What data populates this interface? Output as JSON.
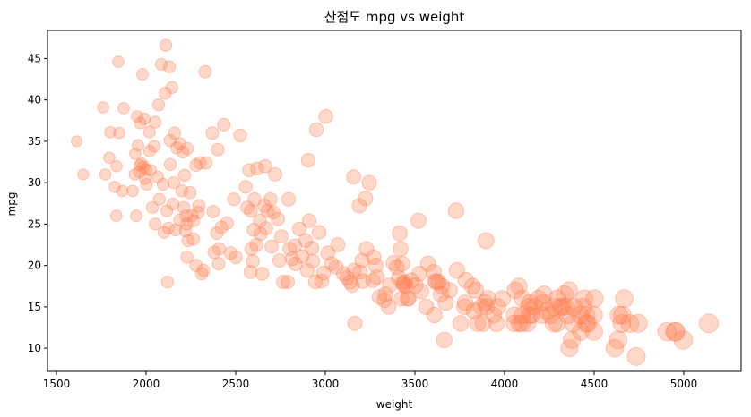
{
  "chart_data": {
    "type": "scatter",
    "title": "산점도 mpg vs weight",
    "xlabel": "weight",
    "ylabel": "mpg",
    "xlim": [
      1450,
      5320
    ],
    "ylim": [
      7.2,
      48.4
    ],
    "xticks": [
      1500,
      2000,
      2500,
      3000,
      3500,
      4000,
      4500,
      5000
    ],
    "yticks": [
      10,
      15,
      20,
      25,
      30,
      35,
      40,
      45
    ],
    "grid": false,
    "marker_color": "#ff7f50",
    "marker_opacity": 0.3,
    "size_encoding": "marker size grows with weight",
    "points": [
      {
        "x": 1613,
        "y": 35
      },
      {
        "x": 1649,
        "y": 31
      },
      {
        "x": 1760,
        "y": 39.1
      },
      {
        "x": 1773,
        "y": 31
      },
      {
        "x": 1795,
        "y": 33
      },
      {
        "x": 1800,
        "y": 36.1
      },
      {
        "x": 1825,
        "y": 29.5
      },
      {
        "x": 1834,
        "y": 26
      },
      {
        "x": 1835,
        "y": 32
      },
      {
        "x": 1845,
        "y": 44.6
      },
      {
        "x": 1850,
        "y": 36
      },
      {
        "x": 1867,
        "y": 29
      },
      {
        "x": 1875,
        "y": 39
      },
      {
        "x": 1925,
        "y": 29
      },
      {
        "x": 1937,
        "y": 31
      },
      {
        "x": 1940,
        "y": 33.5
      },
      {
        "x": 1945,
        "y": 26
      },
      {
        "x": 1950,
        "y": 38
      },
      {
        "x": 1955,
        "y": 34.5
      },
      {
        "x": 1963,
        "y": 31.3
      },
      {
        "x": 1965,
        "y": 32.1
      },
      {
        "x": 1968,
        "y": 37.2
      },
      {
        "x": 1975,
        "y": 32.3
      },
      {
        "x": 1980,
        "y": 43.1
      },
      {
        "x": 1985,
        "y": 31.9
      },
      {
        "x": 1990,
        "y": 37.7
      },
      {
        "x": 1995,
        "y": 30.5
      },
      {
        "x": 2000,
        "y": 31.6
      },
      {
        "x": 2003,
        "y": 29.8
      },
      {
        "x": 2019,
        "y": 36.1
      },
      {
        "x": 2020,
        "y": 33.8
      },
      {
        "x": 2025,
        "y": 31.5
      },
      {
        "x": 2035,
        "y": 27
      },
      {
        "x": 2045,
        "y": 34.4
      },
      {
        "x": 2050,
        "y": 37.3
      },
      {
        "x": 2051,
        "y": 25
      },
      {
        "x": 2065,
        "y": 30.7
      },
      {
        "x": 2070,
        "y": 39.4
      },
      {
        "x": 2074,
        "y": 28
      },
      {
        "x": 2085,
        "y": 44.3
      },
      {
        "x": 2095,
        "y": 29.8
      },
      {
        "x": 2100,
        "y": 24
      },
      {
        "x": 2107,
        "y": 40.8
      },
      {
        "x": 2110,
        "y": 46.6
      },
      {
        "x": 2115,
        "y": 26.6
      },
      {
        "x": 2120,
        "y": 18
      },
      {
        "x": 2125,
        "y": 24.5
      },
      {
        "x": 2130,
        "y": 44
      },
      {
        "x": 2134,
        "y": 35.1
      },
      {
        "x": 2135,
        "y": 32.2
      },
      {
        "x": 2144,
        "y": 41.5
      },
      {
        "x": 2150,
        "y": 27.4
      },
      {
        "x": 2155,
        "y": 30
      },
      {
        "x": 2160,
        "y": 36
      },
      {
        "x": 2164,
        "y": 24.3
      },
      {
        "x": 2171,
        "y": 34.2
      },
      {
        "x": 2188,
        "y": 25.5
      },
      {
        "x": 2190,
        "y": 34.7
      },
      {
        "x": 2200,
        "y": 29
      },
      {
        "x": 2205,
        "y": 33.7
      },
      {
        "x": 2210,
        "y": 27
      },
      {
        "x": 2215,
        "y": 30.9
      },
      {
        "x": 2220,
        "y": 24.2
      },
      {
        "x": 2223,
        "y": 26
      },
      {
        "x": 2226,
        "y": 25
      },
      {
        "x": 2228,
        "y": 21
      },
      {
        "x": 2230,
        "y": 34.1
      },
      {
        "x": 2234,
        "y": 23
      },
      {
        "x": 2245,
        "y": 28.8
      },
      {
        "x": 2255,
        "y": 26
      },
      {
        "x": 2264,
        "y": 23.2
      },
      {
        "x": 2265,
        "y": 25.4
      },
      {
        "x": 2278,
        "y": 32.1
      },
      {
        "x": 2279,
        "y": 20
      },
      {
        "x": 2290,
        "y": 26.4
      },
      {
        "x": 2295,
        "y": 27.2
      },
      {
        "x": 2300,
        "y": 32.4
      },
      {
        "x": 2310,
        "y": 19
      },
      {
        "x": 2320,
        "y": 19.4
      },
      {
        "x": 2330,
        "y": 43.4
      },
      {
        "x": 2335,
        "y": 32.4
      },
      {
        "x": 2370,
        "y": 36
      },
      {
        "x": 2375,
        "y": 26.5
      },
      {
        "x": 2380,
        "y": 21.6
      },
      {
        "x": 2395,
        "y": 23.9
      },
      {
        "x": 2400,
        "y": 34
      },
      {
        "x": 2405,
        "y": 20.2
      },
      {
        "x": 2408,
        "y": 22
      },
      {
        "x": 2420,
        "y": 24.6
      },
      {
        "x": 2434,
        "y": 37
      },
      {
        "x": 2451,
        "y": 25.1
      },
      {
        "x": 2472,
        "y": 21.5
      },
      {
        "x": 2490,
        "y": 28
      },
      {
        "x": 2500,
        "y": 21
      },
      {
        "x": 2525,
        "y": 35.7
      },
      {
        "x": 2556,
        "y": 29.5
      },
      {
        "x": 2565,
        "y": 27
      },
      {
        "x": 2575,
        "y": 31.5
      },
      {
        "x": 2582,
        "y": 19.2
      },
      {
        "x": 2585,
        "y": 26.6
      },
      {
        "x": 2587,
        "y": 22
      },
      {
        "x": 2595,
        "y": 20.5
      },
      {
        "x": 2600,
        "y": 24.3
      },
      {
        "x": 2605,
        "y": 28
      },
      {
        "x": 2615,
        "y": 22.5
      },
      {
        "x": 2620,
        "y": 31.7
      },
      {
        "x": 2635,
        "y": 25.4
      },
      {
        "x": 2639,
        "y": 23.8
      },
      {
        "x": 2648,
        "y": 19
      },
      {
        "x": 2660,
        "y": 27.2
      },
      {
        "x": 2665,
        "y": 32
      },
      {
        "x": 2670,
        "y": 24.5
      },
      {
        "x": 2678,
        "y": 26.6
      },
      {
        "x": 2694,
        "y": 28
      },
      {
        "x": 2700,
        "y": 22.3
      },
      {
        "x": 2711,
        "y": 26.4
      },
      {
        "x": 2720,
        "y": 31
      },
      {
        "x": 2735,
        "y": 25.6
      },
      {
        "x": 2745,
        "y": 20.6
      },
      {
        "x": 2755,
        "y": 23.5
      },
      {
        "x": 2765,
        "y": 18
      },
      {
        "x": 2790,
        "y": 18
      },
      {
        "x": 2795,
        "y": 28
      },
      {
        "x": 2800,
        "y": 22
      },
      {
        "x": 2815,
        "y": 20.8
      },
      {
        "x": 2830,
        "y": 22.4
      },
      {
        "x": 2833,
        "y": 20.2
      },
      {
        "x": 2855,
        "y": 24.4
      },
      {
        "x": 2870,
        "y": 21.1
      },
      {
        "x": 2890,
        "y": 23
      },
      {
        "x": 2900,
        "y": 19.4
      },
      {
        "x": 2905,
        "y": 32.7
      },
      {
        "x": 2910,
        "y": 25.4
      },
      {
        "x": 2925,
        "y": 22.1
      },
      {
        "x": 2930,
        "y": 20.5
      },
      {
        "x": 2945,
        "y": 18
      },
      {
        "x": 2950,
        "y": 36.4
      },
      {
        "x": 2965,
        "y": 24
      },
      {
        "x": 2980,
        "y": 18.1
      },
      {
        "x": 2990,
        "y": 19.1
      },
      {
        "x": 3003,
        "y": 38
      },
      {
        "x": 3015,
        "y": 21.5
      },
      {
        "x": 3035,
        "y": 20.2
      },
      {
        "x": 3060,
        "y": 19.8
      },
      {
        "x": 3070,
        "y": 22.5
      },
      {
        "x": 3102,
        "y": 19
      },
      {
        "x": 3121,
        "y": 18.5
      },
      {
        "x": 3139,
        "y": 18
      },
      {
        "x": 3150,
        "y": 17.6
      },
      {
        "x": 3158,
        "y": 30.7
      },
      {
        "x": 3160,
        "y": 19.4
      },
      {
        "x": 3165,
        "y": 13
      },
      {
        "x": 3190,
        "y": 27.2
      },
      {
        "x": 3193,
        "y": 19.2
      },
      {
        "x": 3205,
        "y": 20.6
      },
      {
        "x": 3210,
        "y": 18.1
      },
      {
        "x": 3225,
        "y": 28.1
      },
      {
        "x": 3230,
        "y": 22
      },
      {
        "x": 3245,
        "y": 30
      },
      {
        "x": 3265,
        "y": 18.2
      },
      {
        "x": 3270,
        "y": 21
      },
      {
        "x": 3282,
        "y": 20
      },
      {
        "x": 3288,
        "y": 18.6
      },
      {
        "x": 3302,
        "y": 16.2
      },
      {
        "x": 3329,
        "y": 15.8
      },
      {
        "x": 3336,
        "y": 16.5
      },
      {
        "x": 3353,
        "y": 15
      },
      {
        "x": 3360,
        "y": 17.6
      },
      {
        "x": 3380,
        "y": 20.3
      },
      {
        "x": 3399,
        "y": 19.8
      },
      {
        "x": 3410,
        "y": 18.5
      },
      {
        "x": 3415,
        "y": 23.9
      },
      {
        "x": 3420,
        "y": 22
      },
      {
        "x": 3425,
        "y": 16
      },
      {
        "x": 3430,
        "y": 20.2
      },
      {
        "x": 3432,
        "y": 17.9
      },
      {
        "x": 3439,
        "y": 17.7
      },
      {
        "x": 3445,
        "y": 18
      },
      {
        "x": 3449,
        "y": 17.5
      },
      {
        "x": 3459,
        "y": 16
      },
      {
        "x": 3465,
        "y": 16
      },
      {
        "x": 3480,
        "y": 18.2
      },
      {
        "x": 3504,
        "y": 17.6
      },
      {
        "x": 3520,
        "y": 25.4
      },
      {
        "x": 3525,
        "y": 19
      },
      {
        "x": 3535,
        "y": 16.9
      },
      {
        "x": 3563,
        "y": 15
      },
      {
        "x": 3574,
        "y": 20.2
      },
      {
        "x": 3605,
        "y": 19.2
      },
      {
        "x": 3609,
        "y": 14
      },
      {
        "x": 3613,
        "y": 18.1
      },
      {
        "x": 3620,
        "y": 18
      },
      {
        "x": 3632,
        "y": 18
      },
      {
        "x": 3645,
        "y": 16.5
      },
      {
        "x": 3651,
        "y": 17.5
      },
      {
        "x": 3664,
        "y": 11
      },
      {
        "x": 3672,
        "y": 15.5
      },
      {
        "x": 3693,
        "y": 17
      },
      {
        "x": 3730,
        "y": 26.6
      },
      {
        "x": 3735,
        "y": 19.4
      },
      {
        "x": 3755,
        "y": 13
      },
      {
        "x": 3777,
        "y": 15
      },
      {
        "x": 3781,
        "y": 15.5
      },
      {
        "x": 3785,
        "y": 18.2
      },
      {
        "x": 3821,
        "y": 17.5
      },
      {
        "x": 3830,
        "y": 14.5
      },
      {
        "x": 3840,
        "y": 17
      },
      {
        "x": 3850,
        "y": 13
      },
      {
        "x": 3870,
        "y": 15
      },
      {
        "x": 3880,
        "y": 13
      },
      {
        "x": 3892,
        "y": 15.5
      },
      {
        "x": 3897,
        "y": 23
      },
      {
        "x": 3900,
        "y": 15
      },
      {
        "x": 3907,
        "y": 16
      },
      {
        "x": 3940,
        "y": 14
      },
      {
        "x": 3955,
        "y": 13
      },
      {
        "x": 3962,
        "y": 15
      },
      {
        "x": 3988,
        "y": 16
      },
      {
        "x": 4054,
        "y": 13
      },
      {
        "x": 4055,
        "y": 14
      },
      {
        "x": 4060,
        "y": 17
      },
      {
        "x": 4080,
        "y": 17.5
      },
      {
        "x": 4082,
        "y": 13
      },
      {
        "x": 4096,
        "y": 13
      },
      {
        "x": 4098,
        "y": 14
      },
      {
        "x": 4100,
        "y": 16
      },
      {
        "x": 4129,
        "y": 13
      },
      {
        "x": 4135,
        "y": 15
      },
      {
        "x": 4140,
        "y": 14
      },
      {
        "x": 4141,
        "y": 15.5
      },
      {
        "x": 4151,
        "y": 14
      },
      {
        "x": 4165,
        "y": 15
      },
      {
        "x": 4190,
        "y": 16
      },
      {
        "x": 4209,
        "y": 14
      },
      {
        "x": 4215,
        "y": 15.5
      },
      {
        "x": 4220,
        "y": 16.5
      },
      {
        "x": 4237,
        "y": 14.5
      },
      {
        "x": 4257,
        "y": 14
      },
      {
        "x": 4274,
        "y": 13
      },
      {
        "x": 4278,
        "y": 15
      },
      {
        "x": 4294,
        "y": 13
      },
      {
        "x": 4295,
        "y": 16
      },
      {
        "x": 4312,
        "y": 15
      },
      {
        "x": 4325,
        "y": 15
      },
      {
        "x": 4335,
        "y": 16.5
      },
      {
        "x": 4341,
        "y": 15
      },
      {
        "x": 4354,
        "y": 14
      },
      {
        "x": 4360,
        "y": 17
      },
      {
        "x": 4363,
        "y": 10
      },
      {
        "x": 4376,
        "y": 11
      },
      {
        "x": 4382,
        "y": 13
      },
      {
        "x": 4385,
        "y": 15
      },
      {
        "x": 4422,
        "y": 14
      },
      {
        "x": 4425,
        "y": 12
      },
      {
        "x": 4440,
        "y": 15
      },
      {
        "x": 4445,
        "y": 16
      },
      {
        "x": 4456,
        "y": 13
      },
      {
        "x": 4457,
        "y": 14
      },
      {
        "x": 4464,
        "y": 13
      },
      {
        "x": 4498,
        "y": 14
      },
      {
        "x": 4499,
        "y": 12
      },
      {
        "x": 4502,
        "y": 16
      },
      {
        "x": 4615,
        "y": 10
      },
      {
        "x": 4633,
        "y": 11
      },
      {
        "x": 4638,
        "y": 14
      },
      {
        "x": 4654,
        "y": 13
      },
      {
        "x": 4657,
        "y": 14
      },
      {
        "x": 4668,
        "y": 16
      },
      {
        "x": 4699,
        "y": 13
      },
      {
        "x": 4735,
        "y": 9
      },
      {
        "x": 4746,
        "y": 13
      },
      {
        "x": 4906,
        "y": 12
      },
      {
        "x": 4951,
        "y": 12
      },
      {
        "x": 4955,
        "y": 12
      },
      {
        "x": 4997,
        "y": 11
      },
      {
        "x": 5140,
        "y": 13
      }
    ]
  }
}
